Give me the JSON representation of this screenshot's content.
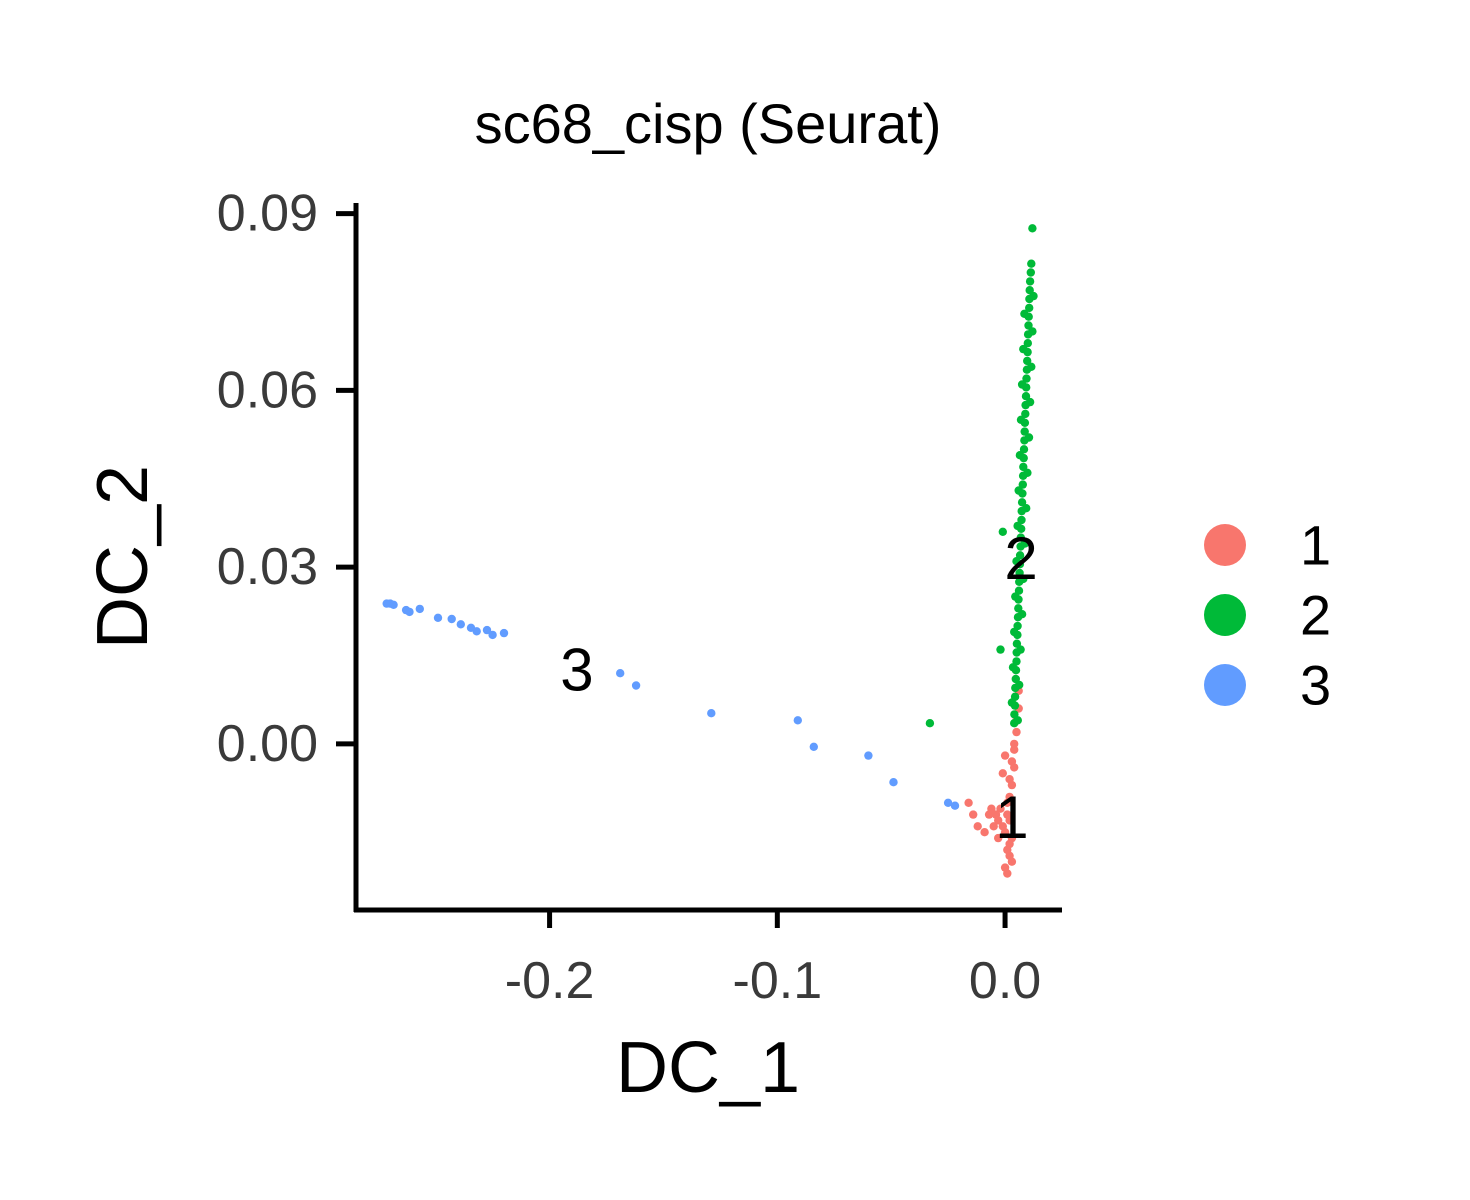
{
  "chart_data": {
    "type": "scatter",
    "title": "sc68_cisp (Seurat)",
    "xlabel": "DC_1",
    "ylabel": "DC_2",
    "xlim": [
      -0.285,
      0.025
    ],
    "ylim": [
      -0.0282,
      0.0918
    ],
    "x_ticks": [
      {
        "value": -0.2,
        "label": "-0.2"
      },
      {
        "value": -0.1,
        "label": "-0.1"
      },
      {
        "value": 0.0,
        "label": "0.0"
      }
    ],
    "y_ticks": [
      {
        "value": 0.0,
        "label": "0.00"
      },
      {
        "value": 0.03,
        "label": "0.03"
      },
      {
        "value": 0.06,
        "label": "0.06"
      },
      {
        "value": 0.09,
        "label": "0.09"
      }
    ],
    "grid": false,
    "legend_position": "right",
    "series": [
      {
        "name": "1",
        "color": "#F8766D",
        "cluster_label": {
          "text": "1",
          "x": 0.003,
          "y": -0.0125
        },
        "points": [
          [
            0.001,
            -0.022
          ],
          [
            0.002,
            -0.019
          ],
          [
            0.003,
            -0.016
          ],
          [
            0.002,
            -0.013
          ],
          [
            0.001,
            -0.01
          ],
          [
            0.003,
            -0.007
          ],
          [
            0.004,
            -0.004
          ],
          [
            0.004,
            -0.001
          ],
          [
            0.005,
            0.002
          ],
          [
            0.006,
            0.006
          ],
          [
            0.006,
            0.009
          ],
          [
            0.0,
            -0.021
          ],
          [
            0.001,
            -0.018
          ],
          [
            0.0,
            -0.015
          ],
          [
            0.001,
            -0.012
          ],
          [
            0.002,
            -0.009
          ],
          [
            0.002,
            -0.006
          ],
          [
            0.003,
            -0.003
          ],
          [
            0.004,
            0.0
          ],
          [
            0.005,
            0.004
          ],
          [
            -0.003,
            -0.016
          ],
          [
            -0.005,
            -0.014
          ],
          [
            -0.007,
            -0.012
          ],
          [
            -0.002,
            -0.011
          ],
          [
            -0.004,
            -0.012
          ],
          [
            -0.006,
            -0.011
          ],
          [
            -0.001,
            -0.014
          ],
          [
            -0.003,
            -0.013
          ],
          [
            -0.012,
            -0.014
          ],
          [
            -0.016,
            -0.01
          ],
          [
            -0.014,
            -0.012
          ],
          [
            -0.009,
            -0.015
          ],
          [
            -0.001,
            -0.005
          ],
          [
            0.0,
            -0.002
          ],
          [
            0.002,
            -0.017
          ],
          [
            0.003,
            -0.02
          ]
        ]
      },
      {
        "name": "2",
        "color": "#00BA38",
        "cluster_label": {
          "text": "2",
          "x": 0.007,
          "y": 0.0315
        },
        "points": [
          [
            0.012,
            0.0875
          ],
          [
            0.0115,
            0.0815
          ],
          [
            0.0113,
            0.08
          ],
          [
            0.011,
            0.0785
          ],
          [
            0.0108,
            0.077
          ],
          [
            0.0107,
            0.0755
          ],
          [
            0.0106,
            0.074
          ],
          [
            0.0104,
            0.0725
          ],
          [
            0.0103,
            0.071
          ],
          [
            0.0101,
            0.0695
          ],
          [
            0.01,
            0.068
          ],
          [
            0.0099,
            0.0665
          ],
          [
            0.0097,
            0.065
          ],
          [
            0.0096,
            0.0635
          ],
          [
            0.0094,
            0.062
          ],
          [
            0.0093,
            0.0605
          ],
          [
            0.0092,
            0.059
          ],
          [
            0.009,
            0.0575
          ],
          [
            0.0089,
            0.056
          ],
          [
            0.0087,
            0.0545
          ],
          [
            0.0086,
            0.053
          ],
          [
            0.0085,
            0.0515
          ],
          [
            0.0083,
            0.05
          ],
          [
            0.0082,
            0.0485
          ],
          [
            0.008,
            0.047
          ],
          [
            0.0079,
            0.0455
          ],
          [
            0.0078,
            0.044
          ],
          [
            0.0076,
            0.0425
          ],
          [
            0.0075,
            0.041
          ],
          [
            0.0073,
            0.0395
          ],
          [
            0.0072,
            0.038
          ],
          [
            0.0071,
            0.0365
          ],
          [
            0.0069,
            0.035
          ],
          [
            0.0068,
            0.0335
          ],
          [
            0.0066,
            0.032
          ],
          [
            0.0065,
            0.0305
          ],
          [
            0.0064,
            0.029
          ],
          [
            0.0062,
            0.0275
          ],
          [
            0.0061,
            0.026
          ],
          [
            0.0059,
            0.0245
          ],
          [
            0.0058,
            0.023
          ],
          [
            0.0057,
            0.0215
          ],
          [
            0.0055,
            0.02
          ],
          [
            0.0054,
            0.0185
          ],
          [
            0.0052,
            0.017
          ],
          [
            0.0051,
            0.0155
          ],
          [
            0.005,
            0.014
          ],
          [
            0.0048,
            0.0125
          ],
          [
            0.0047,
            0.011
          ],
          [
            0.0045,
            0.0095
          ],
          [
            0.0044,
            0.008
          ],
          [
            0.0043,
            0.0065
          ],
          [
            0.0041,
            0.005
          ],
          [
            0.004,
            0.0035
          ],
          [
            0.0125,
            0.076
          ],
          [
            0.012,
            0.07
          ],
          [
            0.0115,
            0.064
          ],
          [
            0.011,
            0.058
          ],
          [
            0.0105,
            0.052
          ],
          [
            0.0098,
            0.046
          ],
          [
            0.0093,
            0.04
          ],
          [
            0.0087,
            0.034
          ],
          [
            0.008,
            0.028
          ],
          [
            0.0075,
            0.022
          ],
          [
            0.0068,
            0.016
          ],
          [
            0.0062,
            0.01
          ],
          [
            0.0056,
            0.004
          ],
          [
            0.0085,
            0.073
          ],
          [
            0.008,
            0.067
          ],
          [
            0.0075,
            0.061
          ],
          [
            0.007,
            0.055
          ],
          [
            0.0065,
            0.049
          ],
          [
            0.006,
            0.043
          ],
          [
            0.0055,
            0.037
          ],
          [
            0.005,
            0.031
          ],
          [
            0.0045,
            0.025
          ],
          [
            0.004,
            0.019
          ],
          [
            0.0035,
            0.013
          ],
          [
            0.003,
            0.007
          ],
          [
            -0.001,
            0.036
          ],
          [
            -0.002,
            0.016
          ],
          [
            -0.033,
            0.0035
          ]
        ]
      },
      {
        "name": "3",
        "color": "#619CFF",
        "cluster_label": {
          "text": "3",
          "x": -0.188,
          "y": 0.0125
        },
        "points": [
          [
            -0.2715,
            0.0238
          ],
          [
            -0.27,
            0.0238
          ],
          [
            -0.2685,
            0.0236
          ],
          [
            -0.263,
            0.0227
          ],
          [
            -0.2615,
            0.0224
          ],
          [
            -0.257,
            0.0229
          ],
          [
            -0.249,
            0.0214
          ],
          [
            -0.243,
            0.0212
          ],
          [
            -0.239,
            0.0203
          ],
          [
            -0.2345,
            0.0197
          ],
          [
            -0.232,
            0.0191
          ],
          [
            -0.2275,
            0.0193
          ],
          [
            -0.225,
            0.0185
          ],
          [
            -0.22,
            0.0188
          ],
          [
            -0.169,
            0.012
          ],
          [
            -0.162,
            0.0099
          ],
          [
            -0.129,
            0.0052
          ],
          [
            -0.091,
            0.004
          ],
          [
            -0.084,
            -0.0005
          ],
          [
            -0.06,
            -0.002
          ],
          [
            -0.049,
            -0.0065
          ],
          [
            -0.025,
            -0.01
          ],
          [
            -0.022,
            -0.0105
          ]
        ]
      }
    ]
  }
}
